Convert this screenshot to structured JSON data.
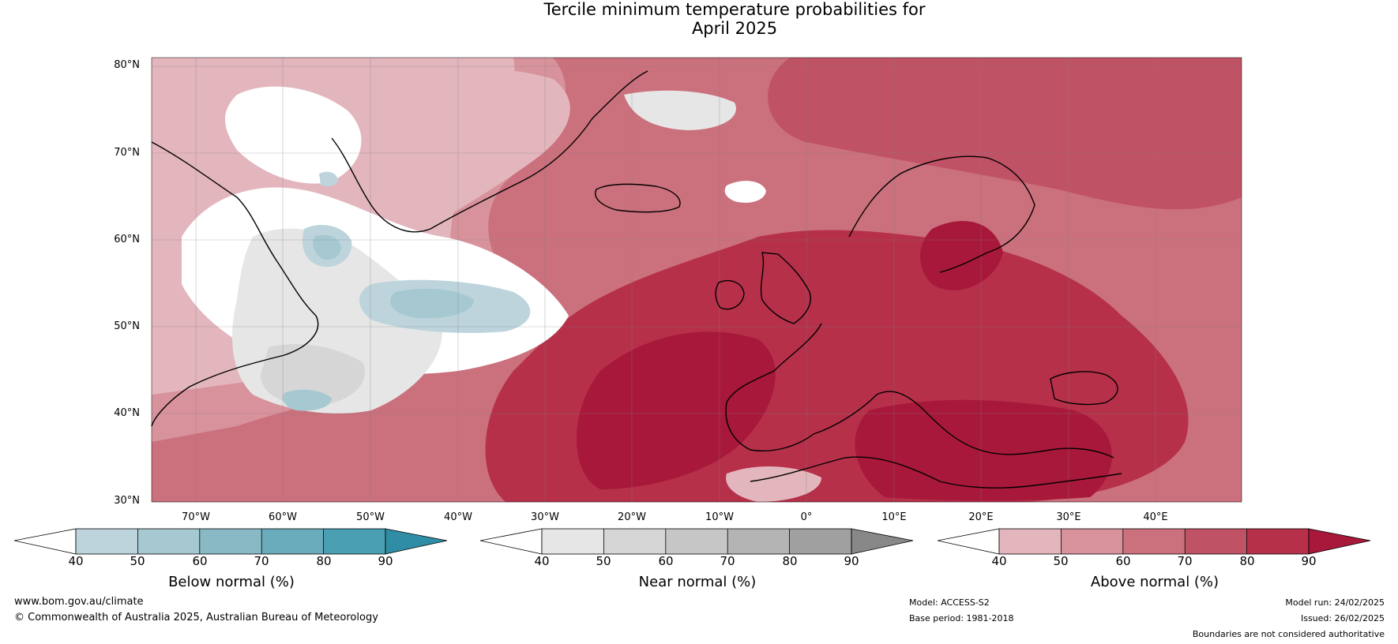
{
  "title": {
    "line1": "Tercile minimum temperature probabilities for",
    "line2": "April 2025"
  },
  "latitude_labels": [
    "80°N",
    "70°N",
    "60°N",
    "50°N",
    "40°N",
    "30°N"
  ],
  "longitude_labels": [
    "70°W",
    "60°W",
    "50°W",
    "40°W",
    "30°W",
    "20°W",
    "10°W",
    "0°",
    "10°E",
    "20°E",
    "30°E",
    "40°E"
  ],
  "colorbars": [
    {
      "label": "Below normal (%)",
      "ticks": [
        "40",
        "50",
        "60",
        "70",
        "80",
        "90"
      ],
      "colors": [
        "#bdd4dc",
        "#a6c8d0",
        "#8ab9c6",
        "#6aabbc",
        "#4a9fb2",
        "#2f8ea5"
      ]
    },
    {
      "label": "Near normal (%)",
      "ticks": [
        "40",
        "50",
        "60",
        "70",
        "80",
        "90"
      ],
      "colors": [
        "#e6e6e6",
        "#d6d6d6",
        "#c6c6c6",
        "#b4b4b4",
        "#a0a0a0",
        "#888888"
      ]
    },
    {
      "label": "Above normal (%)",
      "ticks": [
        "40",
        "50",
        "60",
        "70",
        "80",
        "90"
      ],
      "colors": [
        "#e3b6bd",
        "#d8929c",
        "#cb707d",
        "#c05265",
        "#b6304a",
        "#a8183a"
      ]
    }
  ],
  "footer": {
    "website": "www.bom.gov.au/climate",
    "copyright": "© Commonwealth of Australia 2025, Australian Bureau of Meteorology",
    "model": "Model: ACCESS-S2",
    "base_period": "Base period: 1981-2018",
    "model_run": "Model run: 24/02/2025",
    "issued": "Issued: 26/02/2025",
    "disclaimer": "Boundaries are not considered authoritative"
  },
  "map_colors": {
    "above_40": "#e3b6bd",
    "above_50": "#d8929c",
    "above_60": "#cb707d",
    "above_70": "#c05265",
    "above_80": "#b6304a",
    "above_90": "#a8183a",
    "near_40": "#e6e6e6",
    "near_50": "#d6d6d6",
    "below_40": "#bdd4dc",
    "below_50": "#a6c8d0",
    "white": "#ffffff",
    "coast": "#000000",
    "border": "#808080"
  }
}
